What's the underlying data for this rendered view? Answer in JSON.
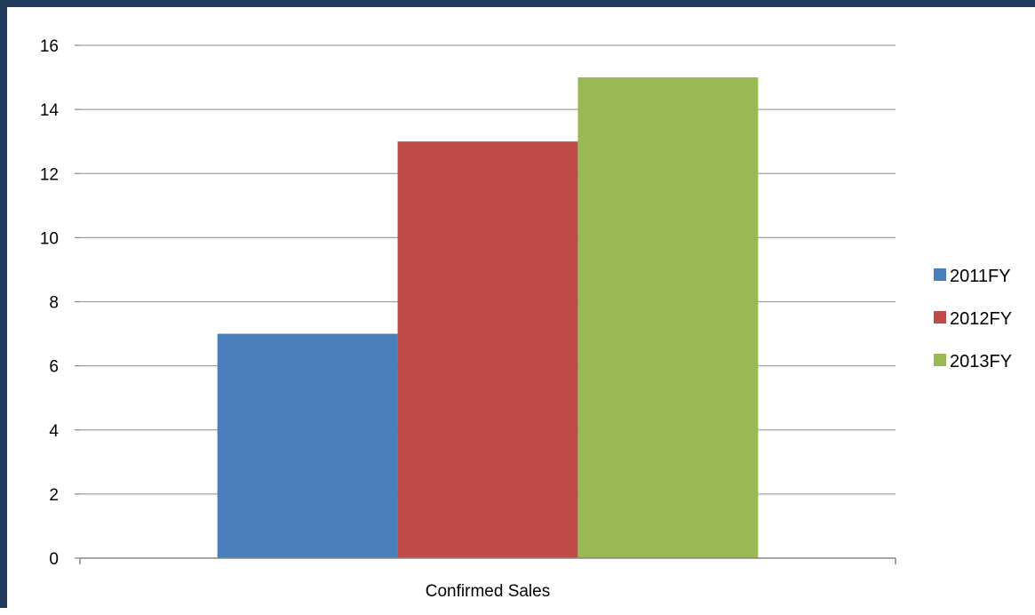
{
  "chart_data": {
    "type": "bar",
    "categories": [
      "Confirmed Sales"
    ],
    "series": [
      {
        "name": "2011FY",
        "values": [
          7
        ],
        "color": "#4a7ebb"
      },
      {
        "name": "2012FY",
        "values": [
          13
        ],
        "color": "#be4b48"
      },
      {
        "name": "2013FY",
        "values": [
          15
        ],
        "color": "#98b954"
      }
    ],
    "title": "",
    "xlabel": "",
    "ylabel": "",
    "ylim": [
      0,
      16
    ],
    "yticks": [
      "0",
      "2",
      "4",
      "6",
      "8",
      "10",
      "12",
      "14",
      "16"
    ],
    "grid": true,
    "legend_position": "right"
  },
  "colors": {
    "frame": "#1f3a5a",
    "gridline": "#a0a0a0",
    "axis": "#868686"
  }
}
